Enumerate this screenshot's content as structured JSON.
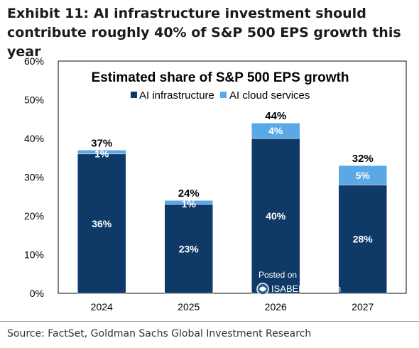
{
  "header": {
    "title": "Exhibit 11: AI infrastructure investment should contribute roughly 40% of S&P 500 EPS growth this year"
  },
  "footer": {
    "source": "Source: FactSet, Goldman Sachs Global Investment Research"
  },
  "watermark": {
    "line1": "Posted on",
    "line2": "ISABELNET.com"
  },
  "colors": {
    "infra": "#0f3a68",
    "cloud": "#5aa8e6"
  },
  "chart_data": {
    "type": "bar",
    "stacked": true,
    "title": "Estimated share of S&P 500 EPS growth",
    "xlabel": "",
    "ylabel": "",
    "categories": [
      "2024",
      "2025",
      "2026",
      "2027"
    ],
    "series": [
      {
        "name": "AI infrastructure",
        "values": [
          36,
          23,
          40,
          28
        ],
        "labels": [
          "36%",
          "23%",
          "40%",
          "28%"
        ]
      },
      {
        "name": "AI cloud services",
        "values": [
          1,
          1,
          4,
          5
        ],
        "labels": [
          "1%",
          "1%",
          "4%",
          "5%"
        ]
      }
    ],
    "totals": [
      "37%",
      "24%",
      "44%",
      "32%"
    ],
    "ylim": [
      0,
      60
    ],
    "yticks": [
      "0%",
      "10%",
      "20%",
      "30%",
      "40%",
      "50%",
      "60%"
    ],
    "grid": false,
    "legend": "top-center"
  }
}
